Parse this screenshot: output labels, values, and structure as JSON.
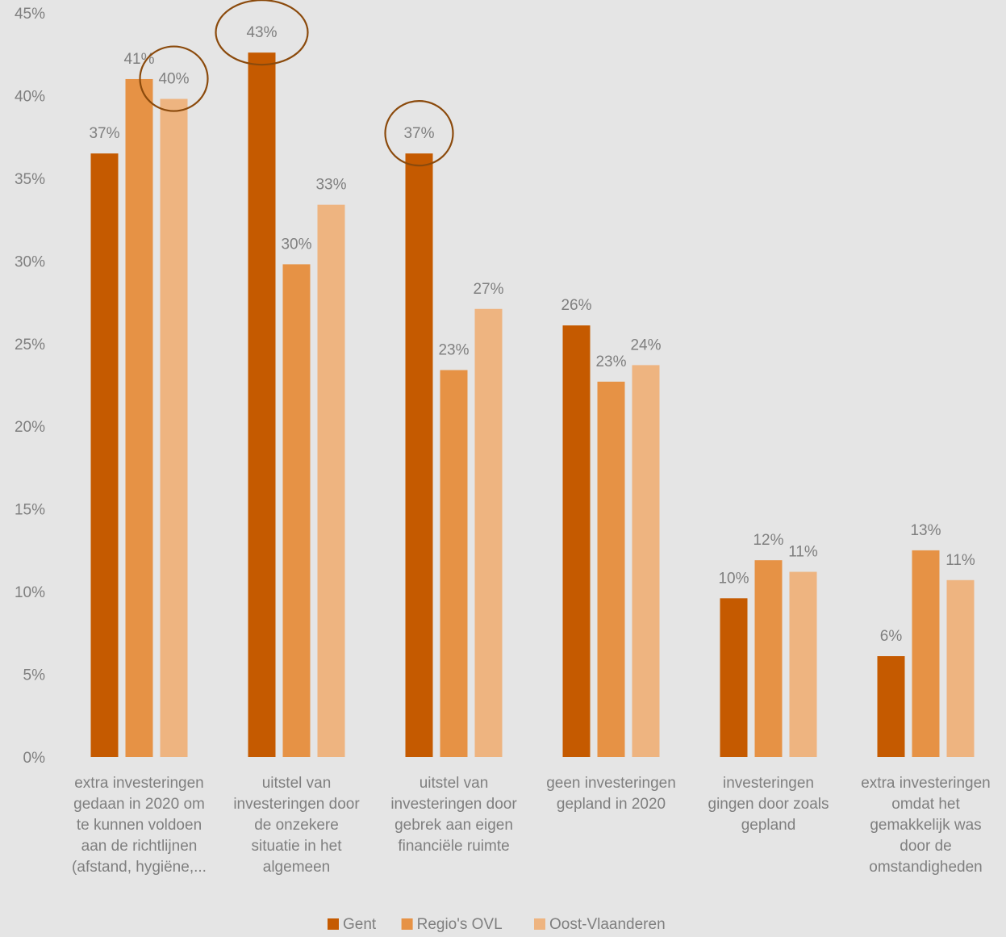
{
  "chart_data": {
    "type": "bar",
    "title": "",
    "xlabel": "",
    "ylabel": "",
    "ylim": [
      0,
      45
    ],
    "yticks": [
      "0%",
      "5%",
      "10%",
      "15%",
      "20%",
      "25%",
      "30%",
      "35%",
      "40%",
      "45%"
    ],
    "grid": false,
    "legend_position": "bottom",
    "categories": [
      [
        "extra investeringen",
        "gedaan in 2020 om",
        "te kunnen voldoen",
        "aan de richtlijnen",
        "(afstand, hygiëne,..."
      ],
      [
        "uitstel van",
        "investeringen door",
        "de onzekere",
        "situatie in het",
        "algemeen"
      ],
      [
        "uitstel van",
        "investeringen door",
        "gebrek aan eigen",
        "financiële ruimte"
      ],
      [
        "geen investeringen",
        "gepland in 2020"
      ],
      [
        "investeringen",
        "gingen door zoals",
        "gepland"
      ],
      [
        "extra investeringen",
        "omdat het",
        "gemakkelijk was",
        "door de",
        "omstandigheden"
      ]
    ],
    "series": [
      {
        "name": "Gent",
        "color": "#c55a00",
        "values": [
          36.5,
          42.6,
          36.5,
          26.1,
          9.6,
          6.1
        ],
        "labels": [
          "37%",
          "43%",
          "37%",
          "26%",
          "10%",
          "6%"
        ]
      },
      {
        "name": "Regio's OVL",
        "color": "#e69245",
        "values": [
          41.0,
          29.8,
          23.4,
          22.7,
          11.9,
          12.5
        ],
        "labels": [
          "41%",
          "30%",
          "23%",
          "23%",
          "12%",
          "13%"
        ]
      },
      {
        "name": "Oost-Vlaanderen",
        "color": "#eeb480",
        "values": [
          39.8,
          33.4,
          27.1,
          23.7,
          11.2,
          10.7
        ],
        "labels": [
          "40%",
          "33%",
          "27%",
          "24%",
          "11%",
          "11%"
        ]
      }
    ],
    "highlighted": [
      {
        "category": 0,
        "series": 2
      },
      {
        "category": 1,
        "series": 0
      },
      {
        "category": 2,
        "series": 0
      }
    ]
  }
}
